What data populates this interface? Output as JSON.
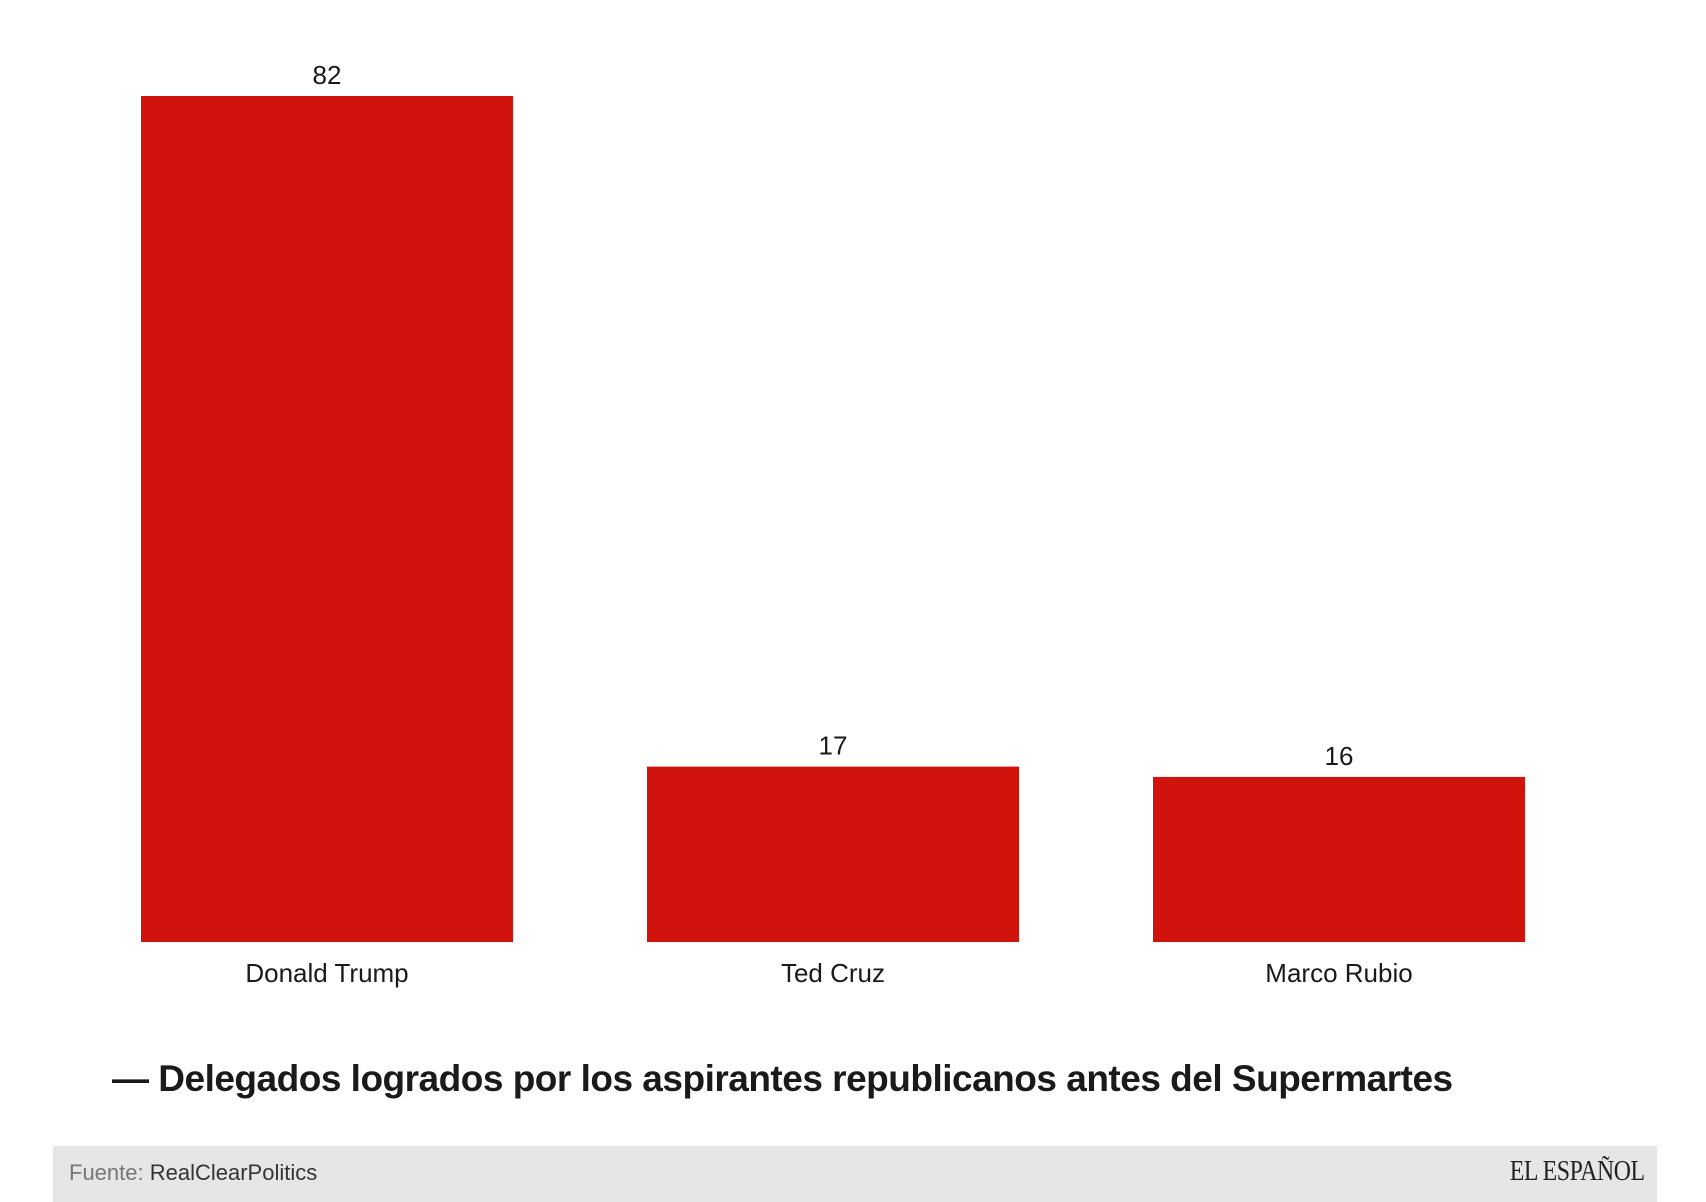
{
  "chart_data": {
    "type": "bar",
    "categories": [
      "Donald Trump",
      "Ted Cruz",
      "Marco Rubio"
    ],
    "values": [
      82,
      17,
      16
    ],
    "value_labels": [
      "82",
      "17",
      "16"
    ],
    "title": "— Delegados logrados por los aspirantes republicanos antes del Supermartes",
    "xlabel": "",
    "ylabel": "",
    "ylim": [
      0,
      82
    ],
    "grid": false,
    "bar_color": "#d0130c"
  },
  "footer": {
    "source_prefix": "Fuente: ",
    "source_name": "RealClearPolitics",
    "logo": "EL ESPAÑOL"
  }
}
